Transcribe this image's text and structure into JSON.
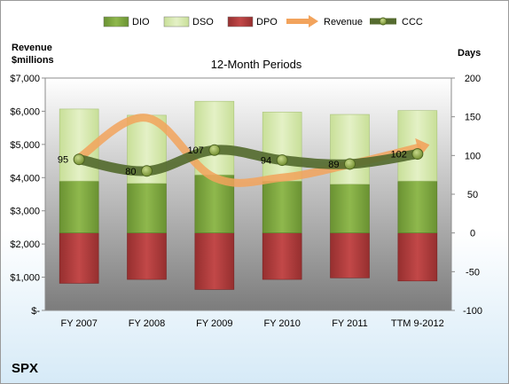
{
  "chart_data": {
    "type": "bar",
    "subtitle": "12-Month Periods",
    "company": "SPX",
    "categories": [
      "FY 2007",
      "FY 2008",
      "FY 2009",
      "FY 2010",
      "FY 2011",
      "TTM 9-2012"
    ],
    "left_axis": {
      "title_line1": "Revenue",
      "title_line2": "$millions",
      "min": 0,
      "max": 7000,
      "step": 1000,
      "tick_labels": [
        "$-",
        "$1,000",
        "$2,000",
        "$3,000",
        "$4,000",
        "$5,000",
        "$6,000",
        "$7,000"
      ]
    },
    "right_axis": {
      "title": "Days",
      "min": -100,
      "max": 200,
      "step": 50,
      "tick_labels": [
        "-100",
        "-50",
        "0",
        "50",
        "100",
        "150",
        "200"
      ]
    },
    "series": [
      {
        "name": "DIO",
        "type": "stacked-bar",
        "axis": "right",
        "color": "#7ea640",
        "values": [
          67,
          64,
          75,
          67,
          63,
          67
        ]
      },
      {
        "name": "DSO",
        "type": "stacked-bar",
        "axis": "right",
        "color": "#d9ebb3",
        "values": [
          93,
          88,
          95,
          89,
          90,
          91
        ]
      },
      {
        "name": "DPO",
        "type": "negative-bar",
        "axis": "right",
        "color": "#b03a3a",
        "values": [
          65,
          60,
          73,
          60,
          58,
          62
        ]
      },
      {
        "name": "Revenue",
        "type": "line",
        "axis": "left",
        "color": "#f2a35c",
        "values": [
          4600,
          5800,
          4000,
          4000,
          4400,
          4900
        ]
      },
      {
        "name": "CCC",
        "type": "line",
        "axis": "right",
        "color": "#556b2f",
        "values": [
          95,
          80,
          107,
          94,
          89,
          102
        ],
        "labels": [
          "95",
          "80",
          "107",
          "94",
          "89",
          "102"
        ]
      }
    ],
    "legend_position": "top",
    "grid": false
  }
}
